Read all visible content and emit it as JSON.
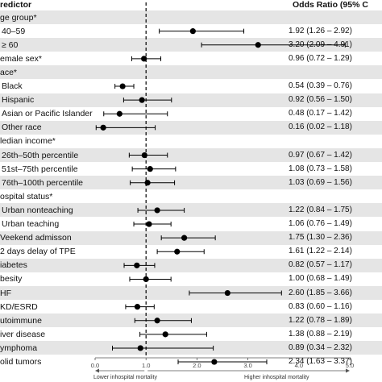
{
  "header": {
    "predictor": "redictor",
    "odds_ratio": "Odds Ratio (95% C"
  },
  "rows": [
    {
      "label": "ge group*",
      "type": "header",
      "indent": 0
    },
    {
      "label": "40–59",
      "type": "data",
      "indent": 1,
      "or": 1.92,
      "lo": 1.26,
      "hi": 2.92,
      "text": "1.92 (1.26 – 2.92)"
    },
    {
      "label": "≥ 60",
      "type": "data",
      "indent": 1,
      "or": 3.2,
      "lo": 2.09,
      "hi": 4.91,
      "text": "3.20 (2.09 – 4.91)"
    },
    {
      "label": "emale sex*",
      "type": "data",
      "indent": 0,
      "or": 0.96,
      "lo": 0.72,
      "hi": 1.29,
      "text": "0.96 (0.72 – 1.29)"
    },
    {
      "label": "ace*",
      "type": "header",
      "indent": 0
    },
    {
      "label": "Black",
      "type": "data",
      "indent": 1,
      "or": 0.54,
      "lo": 0.39,
      "hi": 0.76,
      "text": "0.54 (0.39 – 0.76)"
    },
    {
      "label": "Hispanic",
      "type": "data",
      "indent": 1,
      "or": 0.92,
      "lo": 0.56,
      "hi": 1.5,
      "text": "0.92 (0.56 – 1.50)"
    },
    {
      "label": "Asian or Pacific Islander",
      "type": "data",
      "indent": 1,
      "or": 0.48,
      "lo": 0.17,
      "hi": 1.42,
      "text": "0.48 (0.17 – 1.42)"
    },
    {
      "label": "Other race",
      "type": "data",
      "indent": 1,
      "or": 0.16,
      "lo": 0.02,
      "hi": 1.18,
      "text": "0.16 (0.02 – 1.18)"
    },
    {
      "label": "ledian income*",
      "type": "header",
      "indent": 0
    },
    {
      "label": "26th–50th percentile",
      "type": "data",
      "indent": 1,
      "or": 0.97,
      "lo": 0.67,
      "hi": 1.42,
      "text": "0.97 (0.67 – 1.42)"
    },
    {
      "label": "51st–75th percentile",
      "type": "data",
      "indent": 1,
      "or": 1.08,
      "lo": 0.73,
      "hi": 1.58,
      "text": "1.08 (0.73 – 1.58)"
    },
    {
      "label": "76th–100th percentile",
      "type": "data",
      "indent": 1,
      "or": 1.03,
      "lo": 0.69,
      "hi": 1.56,
      "text": "1.03 (0.69 – 1.56)"
    },
    {
      "label": "ospital status*",
      "type": "header",
      "indent": 0
    },
    {
      "label": "Urban nonteaching",
      "type": "data",
      "indent": 1,
      "or": 1.22,
      "lo": 0.84,
      "hi": 1.75,
      "text": "1.22 (0.84 – 1.75)"
    },
    {
      "label": "Urban teaching",
      "type": "data",
      "indent": 1,
      "or": 1.06,
      "lo": 0.76,
      "hi": 1.49,
      "text": "1.06 (0.76 – 1.49)"
    },
    {
      "label": "Veekend admisson",
      "type": "data",
      "indent": 0,
      "or": 1.75,
      "lo": 1.3,
      "hi": 2.36,
      "text": "1.75 (1.30 – 2.36)"
    },
    {
      "label": "2 days delay of TPE",
      "type": "data",
      "indent": 0,
      "or": 1.61,
      "lo": 1.22,
      "hi": 2.14,
      "text": "1.61 (1.22 – 2.14)"
    },
    {
      "label": "iabetes",
      "type": "data",
      "indent": 0,
      "or": 0.82,
      "lo": 0.57,
      "hi": 1.17,
      "text": "0.82 (0.57 – 1.17)"
    },
    {
      "label": "besity",
      "type": "data",
      "indent": 0,
      "or": 1.0,
      "lo": 0.68,
      "hi": 1.49,
      "text": "1.00 (0.68 – 1.49)"
    },
    {
      "label": "HF",
      "type": "data",
      "indent": 0,
      "or": 2.6,
      "lo": 1.85,
      "hi": 3.66,
      "text": "2.60 (1.85 – 3.66)"
    },
    {
      "label": "KD/ESRD",
      "type": "data",
      "indent": 0,
      "or": 0.83,
      "lo": 0.6,
      "hi": 1.16,
      "text": "0.83 (0.60 – 1.16)"
    },
    {
      "label": "utoimmune",
      "type": "data",
      "indent": 0,
      "or": 1.22,
      "lo": 0.78,
      "hi": 1.89,
      "text": "1.22 (0.78 – 1.89)"
    },
    {
      "label": "iver disease",
      "type": "data",
      "indent": 0,
      "or": 1.38,
      "lo": 0.88,
      "hi": 2.19,
      "text": "1.38 (0.88 – 2.19)"
    },
    {
      "label": "ymphoma",
      "type": "data",
      "indent": 0,
      "or": 0.89,
      "lo": 0.34,
      "hi": 2.32,
      "text": "0.89 (0.34 – 2.32)"
    },
    {
      "label": "olid tumors",
      "type": "data",
      "indent": 0,
      "or": 2.34,
      "lo": 1.63,
      "hi": 3.37,
      "text": "2.34 (1.63 – 3.37)"
    }
  ],
  "chart_data": {
    "type": "forest",
    "xlim": [
      0,
      5
    ],
    "reference_line": 1.0,
    "ticks": [
      0,
      1,
      2,
      3,
      4,
      5
    ],
    "tick_labels": [
      "0.0",
      "1.0",
      "2.0",
      "3.0",
      "4.0",
      "5.0"
    ],
    "left_annotation": "Lower inhospital mortality",
    "right_annotation": "Higher inhospital mortality",
    "colors": {
      "stripe": "#e5e5e5",
      "marker": "#000000",
      "ci": "#000000",
      "axis": "#555555"
    }
  }
}
